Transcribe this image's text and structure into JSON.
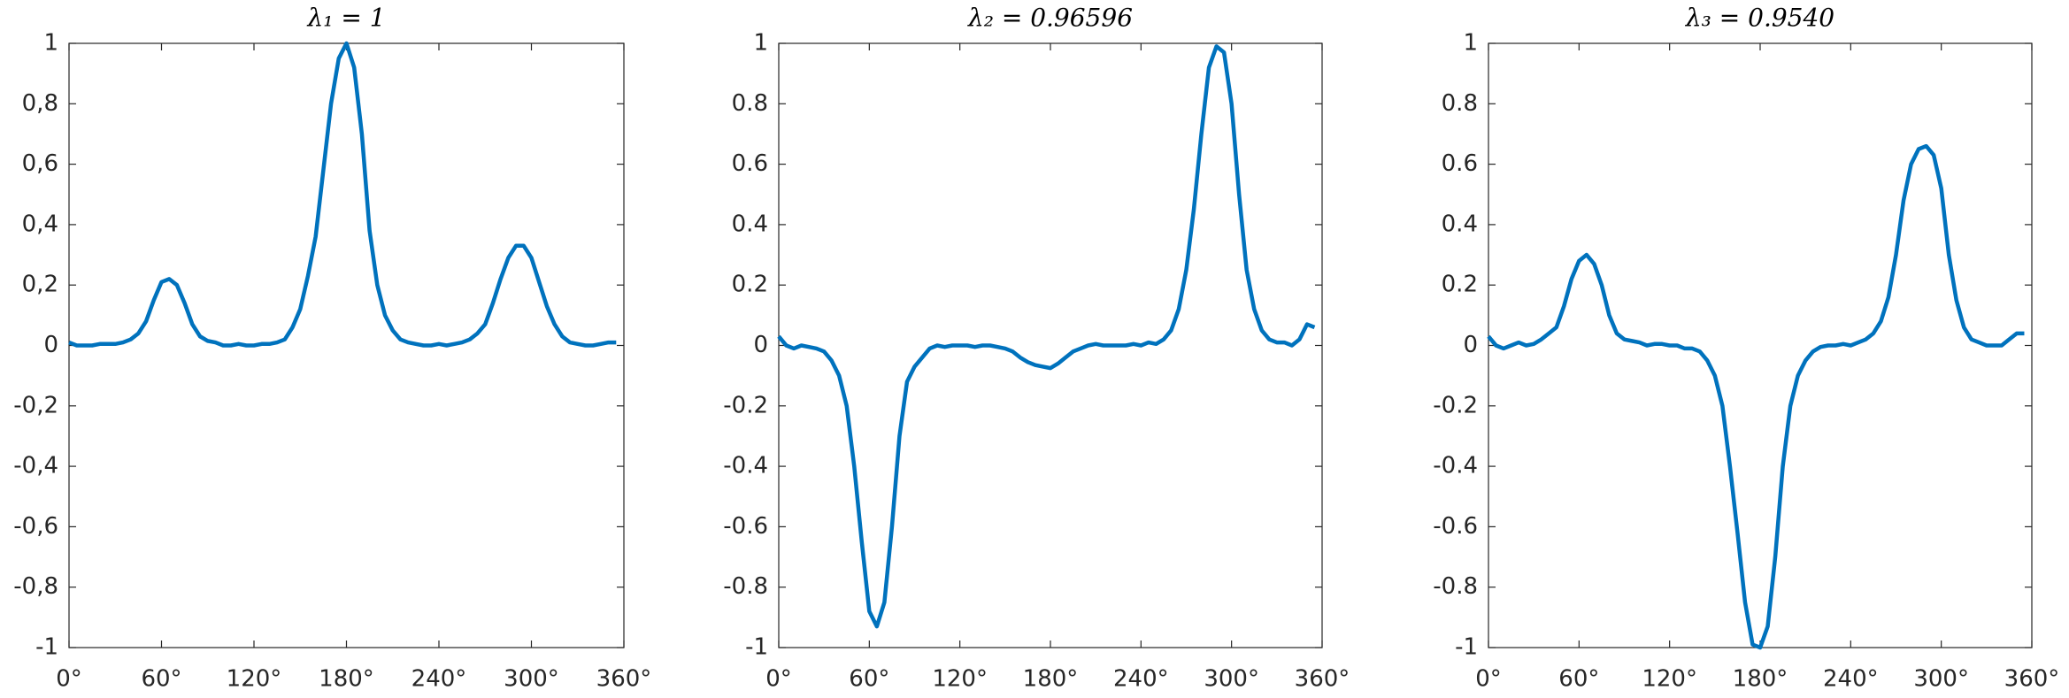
{
  "chart_data": [
    {
      "type": "line",
      "title": "λ₁ = 1",
      "color": "#0072bd",
      "x": [
        0,
        5,
        10,
        15,
        20,
        25,
        30,
        35,
        40,
        45,
        50,
        55,
        60,
        65,
        70,
        75,
        80,
        85,
        90,
        95,
        100,
        105,
        110,
        115,
        120,
        125,
        130,
        135,
        140,
        145,
        150,
        155,
        160,
        165,
        170,
        175,
        180,
        185,
        190,
        195,
        200,
        205,
        210,
        215,
        220,
        225,
        230,
        235,
        240,
        245,
        250,
        255,
        260,
        265,
        270,
        275,
        280,
        285,
        290,
        295,
        300,
        305,
        310,
        315,
        320,
        325,
        330,
        335,
        340,
        345,
        350,
        355
      ],
      "values": [
        0.01,
        0,
        0,
        0,
        0.005,
        0.005,
        0.005,
        0.01,
        0.02,
        0.04,
        0.08,
        0.15,
        0.21,
        0.22,
        0.2,
        0.14,
        0.07,
        0.03,
        0.015,
        0.01,
        0,
        0,
        0.005,
        0,
        0,
        0.005,
        0.005,
        0.01,
        0.02,
        0.06,
        0.12,
        0.23,
        0.36,
        0.58,
        0.8,
        0.95,
        1,
        0.92,
        0.7,
        0.38,
        0.2,
        0.1,
        0.05,
        0.02,
        0.01,
        0.005,
        0,
        0,
        0.005,
        0,
        0.005,
        0.01,
        0.02,
        0.04,
        0.07,
        0.14,
        0.22,
        0.29,
        0.33,
        0.33,
        0.29,
        0.21,
        0.13,
        0.07,
        0.03,
        0.01,
        0.005,
        0,
        0,
        0.005,
        0.01,
        0.01
      ],
      "xlim": [
        0,
        360
      ],
      "ylim": [
        -1,
        1
      ],
      "xticks": [
        {
          "value": 0,
          "label": "0°"
        },
        {
          "value": 60,
          "label": "60°"
        },
        {
          "value": 120,
          "label": "120°"
        },
        {
          "value": 180,
          "label": "180°"
        },
        {
          "value": 240,
          "label": "240°"
        },
        {
          "value": 300,
          "label": "300°"
        },
        {
          "value": 360,
          "label": "360°"
        }
      ],
      "yticks": [
        -1,
        {
          "value": -0.8,
          "label": "-0,8"
        },
        {
          "value": -0.6,
          "label": "-0,6"
        },
        {
          "value": -0.4,
          "label": "-0,4"
        },
        {
          "value": -0.2,
          "label": "-0,2"
        },
        0,
        {
          "value": 0.2,
          "label": "0,2"
        },
        {
          "value": 0.4,
          "label": "0,4"
        },
        {
          "value": 0.6,
          "label": "0,6"
        },
        {
          "value": 0.8,
          "label": "0,8"
        },
        1
      ]
    },
    {
      "type": "line",
      "title": "λ₂ = 0.96596",
      "color": "#0072bd",
      "x": [
        0,
        5,
        10,
        15,
        20,
        25,
        30,
        35,
        40,
        45,
        50,
        55,
        60,
        65,
        70,
        75,
        80,
        85,
        90,
        95,
        100,
        105,
        110,
        115,
        120,
        125,
        130,
        135,
        140,
        145,
        150,
        155,
        160,
        165,
        170,
        175,
        180,
        185,
        190,
        195,
        200,
        205,
        210,
        215,
        220,
        225,
        230,
        235,
        240,
        245,
        250,
        255,
        260,
        265,
        270,
        275,
        280,
        285,
        290,
        295,
        300,
        305,
        310,
        315,
        320,
        325,
        330,
        335,
        340,
        345,
        350,
        355
      ],
      "values": [
        0.03,
        0,
        -0.01,
        0,
        -0.005,
        -0.01,
        -0.02,
        -0.05,
        -0.1,
        -0.2,
        -0.4,
        -0.65,
        -0.88,
        -0.93,
        -0.85,
        -0.6,
        -0.3,
        -0.12,
        -0.07,
        -0.04,
        -0.01,
        0,
        -0.005,
        0,
        0,
        0,
        -0.005,
        0,
        0,
        -0.005,
        -0.01,
        -0.02,
        -0.04,
        -0.055,
        -0.065,
        -0.07,
        -0.075,
        -0.06,
        -0.04,
        -0.02,
        -0.01,
        0,
        0.005,
        0,
        0,
        0,
        0,
        0.005,
        0,
        0.01,
        0.005,
        0.02,
        0.05,
        0.12,
        0.25,
        0.45,
        0.7,
        0.92,
        0.99,
        0.97,
        0.8,
        0.5,
        0.25,
        0.12,
        0.05,
        0.02,
        0.01,
        0.01,
        0,
        0.02,
        0.07,
        0.06
      ],
      "xlim": [
        0,
        360
      ],
      "ylim": [
        -1,
        1
      ],
      "xticks": [
        {
          "value": 0,
          "label": "0°"
        },
        {
          "value": 60,
          "label": "60°"
        },
        {
          "value": 120,
          "label": "120°"
        },
        {
          "value": 180,
          "label": "180°"
        },
        {
          "value": 240,
          "label": "240°"
        },
        {
          "value": 300,
          "label": "300°"
        },
        {
          "value": 360,
          "label": "360°"
        }
      ],
      "yticks": [
        -1,
        -0.8,
        -0.6,
        -0.4,
        -0.2,
        0,
        0.2,
        0.4,
        0.6,
        0.8,
        1
      ]
    },
    {
      "type": "line",
      "title": "λ₃ = 0.9540",
      "color": "#0072bd",
      "x": [
        0,
        5,
        10,
        15,
        20,
        25,
        30,
        35,
        40,
        45,
        50,
        55,
        60,
        65,
        70,
        75,
        80,
        85,
        90,
        95,
        100,
        105,
        110,
        115,
        120,
        125,
        130,
        135,
        140,
        145,
        150,
        155,
        160,
        165,
        170,
        175,
        180,
        185,
        190,
        195,
        200,
        205,
        210,
        215,
        220,
        225,
        230,
        235,
        240,
        245,
        250,
        255,
        260,
        265,
        270,
        275,
        280,
        285,
        290,
        295,
        300,
        305,
        310,
        315,
        320,
        325,
        330,
        335,
        340,
        345,
        350,
        355
      ],
      "values": [
        0.03,
        0,
        -0.01,
        0,
        0.01,
        0,
        0.005,
        0.02,
        0.04,
        0.06,
        0.13,
        0.22,
        0.28,
        0.3,
        0.27,
        0.2,
        0.1,
        0.04,
        0.02,
        0.015,
        0.01,
        0,
        0.005,
        0.005,
        0,
        0,
        -0.01,
        -0.01,
        -0.02,
        -0.05,
        -0.1,
        -0.2,
        -0.4,
        -0.62,
        -0.85,
        -0.99,
        -1,
        -0.93,
        -0.7,
        -0.4,
        -0.2,
        -0.1,
        -0.05,
        -0.02,
        -0.005,
        0,
        0,
        0.005,
        0,
        0.01,
        0.02,
        0.04,
        0.08,
        0.16,
        0.3,
        0.48,
        0.6,
        0.65,
        0.66,
        0.63,
        0.52,
        0.3,
        0.15,
        0.06,
        0.02,
        0.01,
        0,
        0,
        0,
        0.02,
        0.04,
        0.04
      ],
      "xlim": [
        0,
        360
      ],
      "ylim": [
        -1,
        1
      ],
      "xticks": [
        {
          "value": 0,
          "label": "0°"
        },
        {
          "value": 60,
          "label": "60°"
        },
        {
          "value": 120,
          "label": "120°"
        },
        {
          "value": 180,
          "label": "180°"
        },
        {
          "value": 240,
          "label": "240°"
        },
        {
          "value": 300,
          "label": "300°"
        },
        {
          "value": 360,
          "label": "360°"
        }
      ],
      "yticks": [
        -1,
        -0.8,
        -0.6,
        -0.4,
        -0.2,
        0,
        0.2,
        0.4,
        0.6,
        0.8,
        1
      ]
    }
  ]
}
